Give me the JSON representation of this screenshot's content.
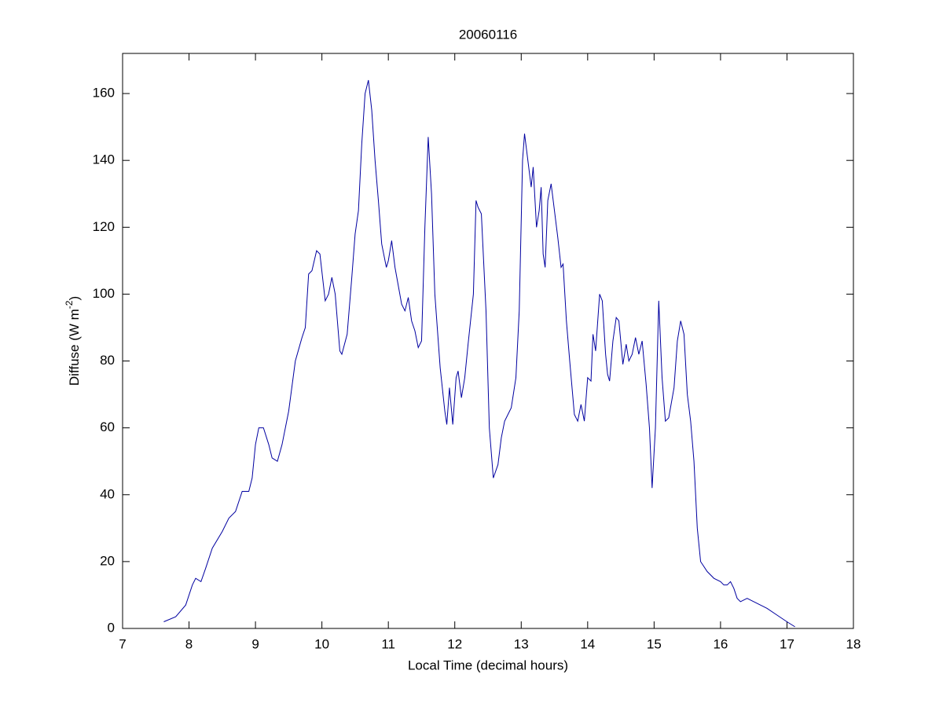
{
  "chart_data": {
    "type": "line",
    "title": "20060116",
    "xlabel": "Local Time (decimal hours)",
    "ylabel": [
      "Diffuse (W m",
      "-2",
      ")"
    ],
    "xlim": [
      7,
      18
    ],
    "xticks": [
      7,
      8,
      9,
      10,
      11,
      12,
      13,
      14,
      15,
      16,
      17,
      18
    ],
    "ylim": [
      0,
      172
    ],
    "yticks": [
      0,
      20,
      40,
      60,
      80,
      100,
      120,
      140,
      160
    ],
    "grid": false,
    "series": [
      {
        "color": "#0000a0",
        "x": [
          7.62,
          7.8,
          7.95,
          8.05,
          8.1,
          8.18,
          8.25,
          8.35,
          8.5,
          8.6,
          8.7,
          8.8,
          8.9,
          8.95,
          9.0,
          9.05,
          9.12,
          9.2,
          9.25,
          9.33,
          9.4,
          9.5,
          9.6,
          9.7,
          9.75,
          9.8,
          9.85,
          9.92,
          9.97,
          10.05,
          10.1,
          10.15,
          10.2,
          10.27,
          10.3,
          10.38,
          10.45,
          10.5,
          10.55,
          10.6,
          10.65,
          10.7,
          10.75,
          10.8,
          10.85,
          10.9,
          10.97,
          11.0,
          11.05,
          11.1,
          11.2,
          11.25,
          11.3,
          11.35,
          11.4,
          11.45,
          11.5,
          11.55,
          11.6,
          11.65,
          11.7,
          11.78,
          11.85,
          11.88,
          11.92,
          11.97,
          12.02,
          12.05,
          12.1,
          12.15,
          12.2,
          12.28,
          12.32,
          12.35,
          12.4,
          12.47,
          12.52,
          12.58,
          12.65,
          12.7,
          12.75,
          12.8,
          12.85,
          12.92,
          12.97,
          13.02,
          13.05,
          13.1,
          13.15,
          13.18,
          13.23,
          13.27,
          13.3,
          13.33,
          13.36,
          13.4,
          13.45,
          13.5,
          13.55,
          13.6,
          13.63,
          13.68,
          13.73,
          13.8,
          13.85,
          13.9,
          13.95,
          14.0,
          14.05,
          14.08,
          14.12,
          14.18,
          14.22,
          14.27,
          14.3,
          14.33,
          14.38,
          14.43,
          14.47,
          14.53,
          14.58,
          14.62,
          14.67,
          14.72,
          14.77,
          14.82,
          14.88,
          14.93,
          14.97,
          15.02,
          15.07,
          15.12,
          15.17,
          15.22,
          15.3,
          15.35,
          15.4,
          15.45,
          15.5,
          15.55,
          15.6,
          15.65,
          15.7,
          15.8,
          15.9,
          16.0,
          16.05,
          16.1,
          16.15,
          16.2,
          16.25,
          16.3,
          16.4,
          16.5,
          16.6,
          16.7,
          16.85,
          17.0,
          17.12
        ],
        "values": [
          2,
          3.5,
          7,
          13,
          15,
          14,
          18,
          24,
          29,
          33,
          35,
          41,
          41,
          45,
          55,
          60,
          60,
          55,
          51,
          50,
          55,
          65,
          80,
          87,
          90,
          106,
          107,
          113,
          112,
          98,
          100,
          105,
          100,
          83,
          82,
          88,
          105,
          118,
          125,
          145,
          160,
          164,
          155,
          140,
          128,
          115,
          108,
          110,
          116,
          108,
          97,
          95,
          99,
          92,
          89,
          84,
          86,
          120,
          147,
          130,
          100,
          78,
          65,
          61,
          72,
          61,
          75,
          77,
          69,
          75,
          85,
          100,
          128,
          126,
          124,
          95,
          60,
          45,
          49,
          57,
          62,
          64,
          66,
          75,
          95,
          140,
          148,
          140,
          132,
          138,
          120,
          125,
          132,
          112,
          108,
          128,
          133,
          125,
          117,
          108,
          109,
          92,
          80,
          64,
          62,
          67,
          62,
          75,
          74,
          88,
          83,
          100,
          98,
          82,
          76,
          74,
          86,
          93,
          92,
          79,
          85,
          80,
          82,
          87,
          82,
          86,
          73,
          60,
          42,
          60,
          98,
          75,
          62,
          63,
          72,
          86,
          92,
          88,
          70,
          62,
          50,
          30,
          20,
          17,
          15,
          14,
          13,
          13,
          14,
          12,
          9,
          8,
          9,
          8,
          7,
          6,
          4,
          2,
          0.5
        ]
      }
    ]
  }
}
